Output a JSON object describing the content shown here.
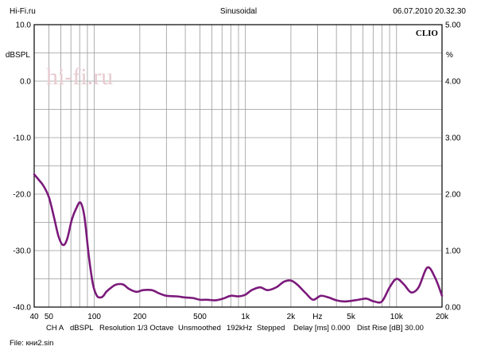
{
  "header": {
    "left": "Hi-Fi.ru",
    "center": "Sinusoidal",
    "right": "06.07.2010 20.32.30"
  },
  "brand": "CLIO",
  "watermark": "hi-fi.ru",
  "footer": {
    "channel": "CH A",
    "unit": "dBSPL",
    "resolution": "Resolution 1/3 Octave",
    "smoothing": "Unsmoothed",
    "rate": "192kHz",
    "mode": "Stepped",
    "delay": "Delay [ms] 0.000",
    "dist_rise": "Dist Rise [dB] 30.00",
    "file": "File: кни2.sin"
  },
  "chart_data": {
    "type": "line",
    "x_scale": "log",
    "xlim": [
      40,
      20000
    ],
    "ylim": [
      -40,
      10
    ],
    "ylabel": "dBSPL",
    "y2label": "%",
    "y2lim": [
      0,
      5
    ],
    "x_ticks": [
      {
        "value": 40,
        "label": "40"
      },
      {
        "value": 50,
        "label": "50"
      },
      {
        "value": 100,
        "label": "100"
      },
      {
        "value": 200,
        "label": "200"
      },
      {
        "value": 500,
        "label": "500"
      },
      {
        "value": 1000,
        "label": "1k"
      },
      {
        "value": 2000,
        "label": "2k"
      },
      {
        "value": 3000,
        "label": "Hz"
      },
      {
        "value": 5000,
        "label": "5k"
      },
      {
        "value": 10000,
        "label": "10k"
      },
      {
        "value": 20000,
        "label": "20k"
      }
    ],
    "y_ticks": [
      {
        "value": 10,
        "label": "10.0"
      },
      {
        "value": 0,
        "label": "0.0"
      },
      {
        "value": -10,
        "label": "-10.0"
      },
      {
        "value": -20,
        "label": "-20.0"
      },
      {
        "value": -30,
        "label": "-30.0"
      },
      {
        "value": -40,
        "label": "-40.0"
      }
    ],
    "y2_ticks": [
      {
        "value": 5,
        "label": "5.00"
      },
      {
        "value": 4,
        "label": "4.00"
      },
      {
        "value": 3,
        "label": "3.00"
      },
      {
        "value": 2,
        "label": "2.00"
      },
      {
        "value": 1,
        "label": "1.00"
      },
      {
        "value": 0,
        "label": "0.00"
      }
    ],
    "grid": true,
    "series": [
      {
        "color": "#7b1a7b",
        "x": [
          40,
          43,
          46,
          50,
          54,
          58,
          62,
          66,
          71,
          76,
          81,
          86,
          92,
          98,
          104,
          110,
          115,
          120,
          130,
          140,
          155,
          170,
          190,
          210,
          240,
          270,
          300,
          350,
          400,
          450,
          500,
          560,
          630,
          710,
          800,
          900,
          1000,
          1100,
          1250,
          1400,
          1600,
          1800,
          2000,
          2200,
          2500,
          2800,
          3150,
          3550,
          4000,
          4500,
          5000,
          5600,
          6300,
          7100,
          8000,
          9000,
          10000,
          11200,
          12500,
          14000,
          16000,
          18000,
          20000
        ],
        "y": [
          -16.5,
          -17.5,
          -18.5,
          -20.5,
          -24.0,
          -27.5,
          -29.0,
          -28.0,
          -24.5,
          -22.5,
          -21.5,
          -24.0,
          -31.0,
          -36.0,
          -38.0,
          -38.3,
          -38.0,
          -37.3,
          -36.5,
          -36.0,
          -36.0,
          -36.8,
          -37.3,
          -37.0,
          -37.0,
          -37.6,
          -38.0,
          -38.1,
          -38.3,
          -38.4,
          -38.7,
          -38.7,
          -38.8,
          -38.5,
          -38.0,
          -38.1,
          -37.8,
          -37.0,
          -36.5,
          -37.0,
          -36.5,
          -35.5,
          -35.3,
          -36.0,
          -37.5,
          -38.7,
          -38.0,
          -38.3,
          -38.8,
          -39.0,
          -38.9,
          -38.7,
          -38.5,
          -39.0,
          -39.0,
          -36.5,
          -35.0,
          -36.0,
          -37.4,
          -36.5,
          -33.0,
          -34.8,
          -38.0
        ]
      }
    ]
  }
}
